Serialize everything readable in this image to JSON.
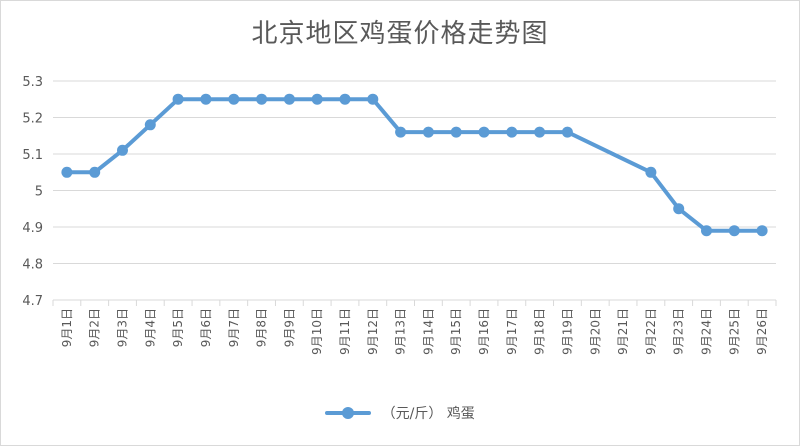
{
  "chart_data": {
    "type": "line",
    "title": "北京地区鸡蛋价格走势图",
    "categories": [
      "9月1日",
      "9月2日",
      "9月3日",
      "9月4日",
      "9月5日",
      "9月6日",
      "9月7日",
      "9月8日",
      "9月9日",
      "9月10日",
      "9月11日",
      "9月12日",
      "9月13日",
      "9月14日",
      "9月15日",
      "9月16日",
      "9月17日",
      "9月18日",
      "9月19日",
      "9月20日",
      "9月21日",
      "9月22日",
      "9月23日",
      "9月24日",
      "9月25日",
      "9月26日"
    ],
    "series": [
      {
        "name": "（元/斤） 鸡蛋",
        "color": "#5b9bd5",
        "values": [
          5.05,
          5.05,
          5.11,
          5.18,
          5.25,
          5.25,
          5.25,
          5.25,
          5.25,
          5.25,
          5.25,
          5.25,
          5.16,
          5.16,
          5.16,
          5.16,
          5.16,
          5.16,
          5.16,
          null,
          null,
          5.05,
          4.95,
          4.89,
          4.89,
          4.89
        ]
      }
    ],
    "ylim": [
      4.7,
      5.3
    ],
    "yticks": [
      "5.3",
      "5.2",
      "5.1",
      "5",
      "4.9",
      "4.8",
      "4.7"
    ],
    "grid": true,
    "legend_position": "bottom"
  }
}
